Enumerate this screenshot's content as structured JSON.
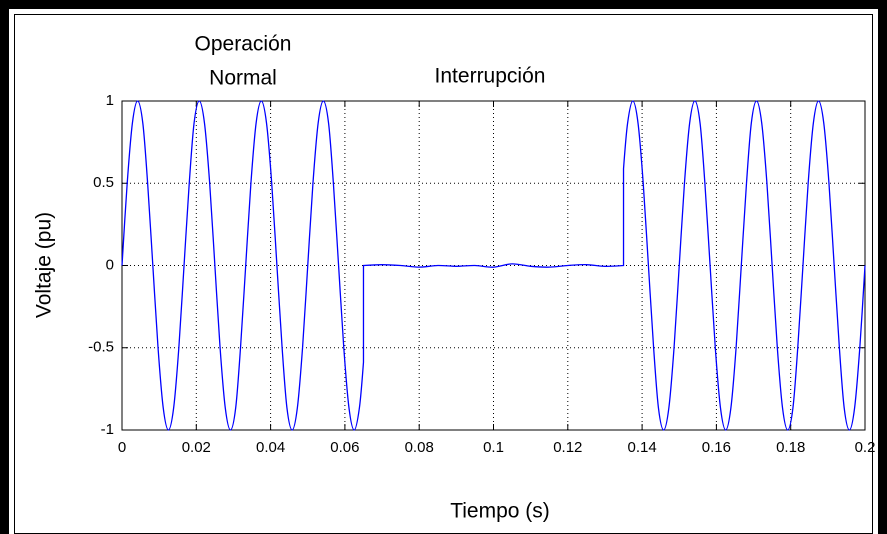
{
  "chart_data": {
    "type": "line",
    "xlabel": "Tiempo (s)",
    "ylabel": "Voltaje (pu)",
    "annotations": [
      {
        "lines": [
          "Operación",
          "Normal"
        ]
      },
      {
        "lines": [
          "Interrupción"
        ]
      }
    ],
    "xlim": [
      0,
      0.2
    ],
    "xticks": [
      0,
      0.02,
      0.04,
      0.06,
      0.08,
      0.1,
      0.12,
      0.14,
      0.16,
      0.18,
      0.2
    ],
    "ylim": [
      -1,
      1
    ],
    "yticks": [
      -1,
      -0.5,
      0,
      0.5,
      1
    ],
    "grid": true,
    "series": [
      {
        "color": "#0000ff",
        "x": [
          0,
          0.0014,
          0.0028,
          0.0042,
          0.0056,
          0.0069,
          0.0083,
          0.0097,
          0.0111,
          0.0125,
          0.0139,
          0.0153,
          0.0167,
          0.0181,
          0.0194,
          0.0208,
          0.0222,
          0.0236,
          0.025,
          0.0264,
          0.0278,
          0.0292,
          0.0306,
          0.0319,
          0.0333,
          0.0347,
          0.0361,
          0.0375,
          0.0389,
          0.0403,
          0.0417,
          0.0431,
          0.0444,
          0.0458,
          0.0472,
          0.0486,
          0.05,
          0.0514,
          0.0528,
          0.0542,
          0.0556,
          0.0569,
          0.0583,
          0.0597,
          0.0611,
          0.0625,
          0.0639,
          0.065,
          0.065,
          0.07,
          0.075,
          0.08,
          0.085,
          0.09,
          0.095,
          0.1,
          0.105,
          0.11,
          0.115,
          0.12,
          0.125,
          0.13,
          0.135,
          0.135,
          0.1361,
          0.1375,
          0.1389,
          0.1403,
          0.1417,
          0.1431,
          0.1444,
          0.1458,
          0.1472,
          0.1486,
          0.15,
          0.1514,
          0.1528,
          0.1542,
          0.1556,
          0.1569,
          0.1583,
          0.1597,
          0.1611,
          0.1625,
          0.1639,
          0.1653,
          0.1667,
          0.1681,
          0.1694,
          0.1708,
          0.1722,
          0.1736,
          0.175,
          0.1764,
          0.1778,
          0.1792,
          0.1806,
          0.1819,
          0.1833,
          0.1847,
          0.1861,
          0.1875,
          0.1889,
          0.1903,
          0.1917,
          0.1931,
          0.1944,
          0.1958,
          0.1972,
          0.1986,
          0.2
        ],
        "values": [
          0,
          0.5,
          0.866,
          1,
          0.866,
          0.5,
          0,
          -0.5,
          -0.866,
          -1,
          -0.866,
          -0.5,
          0,
          0.5,
          0.866,
          1,
          0.866,
          0.5,
          0,
          -0.5,
          -0.866,
          -1,
          -0.866,
          -0.5,
          0,
          0.5,
          0.866,
          1,
          0.866,
          0.5,
          0,
          -0.5,
          -0.866,
          -1,
          -0.866,
          -0.5,
          0,
          0.5,
          0.866,
          1,
          0.866,
          0.5,
          0,
          -0.5,
          -0.866,
          -1,
          -0.866,
          -0.588,
          0,
          0.005,
          0,
          -0.01,
          0,
          -0.005,
          0,
          -0.01,
          0.01,
          -0.005,
          -0.01,
          0,
          0.005,
          -0.005,
          0,
          0.588,
          0.866,
          1,
          0.866,
          0.5,
          0,
          -0.5,
          -0.866,
          -1,
          -0.866,
          -0.5,
          0,
          0.5,
          0.866,
          1,
          0.866,
          0.5,
          0,
          -0.5,
          -0.866,
          -1,
          -0.866,
          -0.5,
          0,
          0.5,
          0.866,
          1,
          0.866,
          0.5,
          0,
          -0.5,
          -0.866,
          -1,
          -0.866,
          -0.5,
          0,
          0.5,
          0.866,
          1,
          0.866,
          0.5,
          0,
          -0.5,
          -0.866,
          -1,
          -0.866,
          -0.5,
          0
        ]
      }
    ]
  }
}
